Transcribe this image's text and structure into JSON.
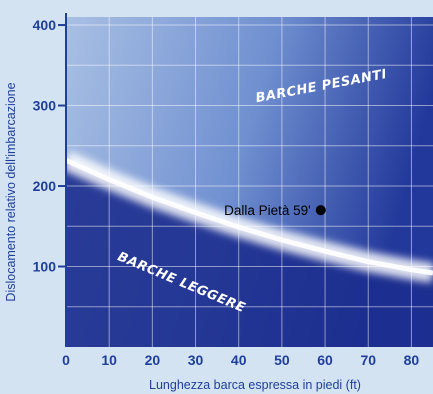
{
  "chart_data": {
    "type": "area",
    "xlabel": "Lunghezza barca espressa in piedi (ft)",
    "ylabel": "Dislocamento relativo dell'imbarcazione",
    "xlim": [
      0,
      85
    ],
    "ylim": [
      0,
      410
    ],
    "x_ticks": [
      "0",
      "10",
      "20",
      "30",
      "40",
      "50",
      "60",
      "70",
      "80"
    ],
    "y_ticks": [
      "100",
      "200",
      "300",
      "400"
    ],
    "grid": true,
    "boundary_curve": {
      "x": [
        0,
        10,
        20,
        30,
        40,
        50,
        60,
        70,
        80,
        85
      ],
      "y": [
        232,
        208,
        186,
        167,
        149,
        133,
        119,
        106,
        96,
        92
      ]
    },
    "regions": [
      {
        "label": "BARCHE PESANTI",
        "position": "above boundary"
      },
      {
        "label": "BARCHE LEGGERE",
        "position": "below boundary"
      }
    ],
    "points": [
      {
        "label": "Dalla Pietà 59'",
        "x": 59,
        "y": 170
      }
    ],
    "colors": {
      "dark_blue": "#1a2a8a",
      "mid_blue": "#5c7dc8",
      "light_band": "#ffffff",
      "axis_text": "#1f3f9c"
    }
  }
}
